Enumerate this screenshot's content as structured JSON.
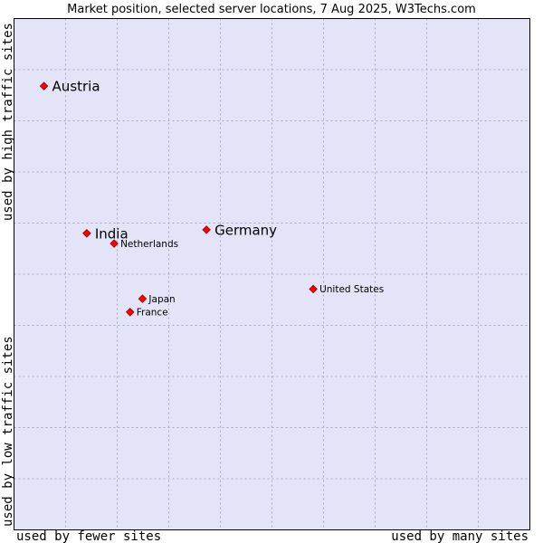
{
  "chart_data": {
    "type": "scatter",
    "title": "Market position, selected server locations, 7 Aug 2025, W3Techs.com",
    "xlabel_low": "used by fewer sites",
    "xlabel_high": "used by many sites",
    "ylabel_low": "used by low traffic sites",
    "ylabel_high": "used by high traffic sites",
    "xlim": [
      0,
      100
    ],
    "ylim": [
      0,
      100
    ],
    "grid": true,
    "tick_count": 10,
    "colors": {
      "plot_background": "#e4e4f8",
      "grid": "#a9a9c7",
      "frame": "#000000",
      "marker": "#ff0000",
      "marker_outline": "#990000"
    },
    "points": [
      {
        "label": "Austria",
        "x": 5.8,
        "y": 86.8,
        "size": "large"
      },
      {
        "label": "India",
        "x": 14.1,
        "y": 58.0,
        "size": "large"
      },
      {
        "label": "Netherlands",
        "x": 19.4,
        "y": 56.0,
        "size": "small"
      },
      {
        "label": "Germany",
        "x": 37.3,
        "y": 58.7,
        "size": "large"
      },
      {
        "label": "United States",
        "x": 58.0,
        "y": 47.1,
        "size": "small"
      },
      {
        "label": "Japan",
        "x": 24.9,
        "y": 45.2,
        "size": "small"
      },
      {
        "label": "France",
        "x": 22.5,
        "y": 42.6,
        "size": "small"
      }
    ]
  }
}
